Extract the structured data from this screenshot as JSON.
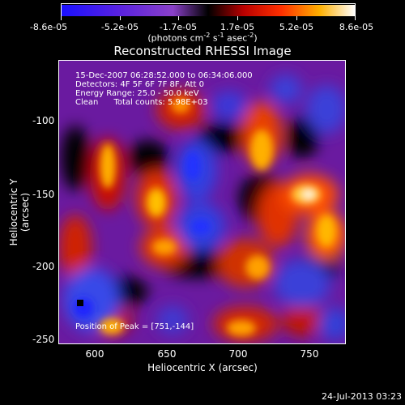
{
  "colorbar": {
    "tick_labels": [
      "-8.6e-05",
      "-5.2e-05",
      "-1.7e-05",
      "1.7e-05",
      "5.2e-05",
      "8.6e-05"
    ],
    "units_prefix": "(photons cm",
    "units_exp1": "-2",
    "units_mid1": " s",
    "units_exp2": "-1",
    "units_mid2": " asec",
    "units_exp3": "-2",
    "units_suffix": ")"
  },
  "title": "Reconstructed RHESSI Image",
  "info": {
    "time": "15-Dec-2007 06:28:52.000 to 06:34:06.000",
    "detectors": "Detectors: 4F 5F 6F 7F 8F, Att 0",
    "energy": "Energy Range: 25.0 - 50.0 keV",
    "clean": "Clean      Total counts: 5.98E+03"
  },
  "peak": "Position of Peak = [751,-144]",
  "axes": {
    "x_label": "Heliocentric X (arcsec)",
    "y_label": "Heliocentric Y (arcsec)",
    "x_ticks": [
      "600",
      "650",
      "700",
      "750"
    ],
    "y_ticks": [
      "-100",
      "-150",
      "-200",
      "-250"
    ]
  },
  "footer_date": "24-Jul-2013 03:23"
}
